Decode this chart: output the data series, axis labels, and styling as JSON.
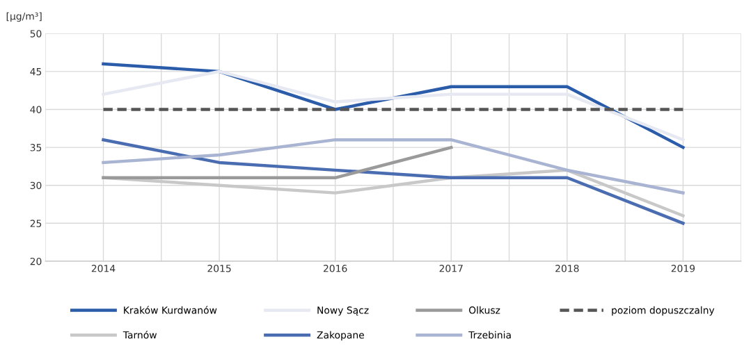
{
  "chart_data": {
    "type": "line",
    "ylabel": "[µg/m³]",
    "x": [
      2014,
      2015,
      2016,
      2017,
      2018,
      2019
    ],
    "xlim": [
      2013.5,
      2019.5
    ],
    "xticks": [
      {
        "value": 2013.5,
        "label": null
      },
      2014,
      {
        "value": 2014.5,
        "label": null
      },
      2015,
      {
        "value": 2015.5,
        "label": null
      },
      2016,
      {
        "value": 2016.5,
        "label": null
      },
      2017,
      {
        "value": 2017.5,
        "label": null
      },
      2018,
      {
        "value": 2018.5,
        "label": null
      },
      2019,
      {
        "value": 2019.5,
        "label": null
      }
    ],
    "ylim": [
      20,
      50
    ],
    "yticks": [
      20,
      25,
      30,
      35,
      40,
      45,
      50
    ],
    "grid": true,
    "legend": "bottom",
    "marker": "none",
    "series": [
      {
        "name": "Kraków Kurdwanów",
        "color": "#2a5caa",
        "values": [
          46,
          45,
          40,
          43,
          43,
          35
        ]
      },
      {
        "name": "Tarnów",
        "color": "#c8c8c8",
        "values": [
          31,
          30,
          29,
          31,
          32,
          26
        ]
      },
      {
        "name": "Nowy Sącz",
        "color": "#e6e8f2",
        "values": [
          42,
          45,
          41,
          42,
          42,
          36
        ]
      },
      {
        "name": "Zakopane",
        "color": "#4a6cb0",
        "values": [
          36,
          33,
          32,
          31,
          31,
          25
        ]
      },
      {
        "name": "Olkusz",
        "color": "#9a9a9a",
        "values": [
          31,
          31,
          31,
          35,
          null,
          null
        ]
      },
      {
        "name": "Trzebinia",
        "color": "#a9b4d2",
        "values": [
          33,
          34,
          36,
          36,
          32,
          29
        ]
      },
      {
        "name": "poziom dopuszczalny",
        "color": "#555555",
        "line_style": "dashed",
        "values": [
          40,
          40,
          40,
          40,
          40,
          40
        ]
      }
    ]
  }
}
